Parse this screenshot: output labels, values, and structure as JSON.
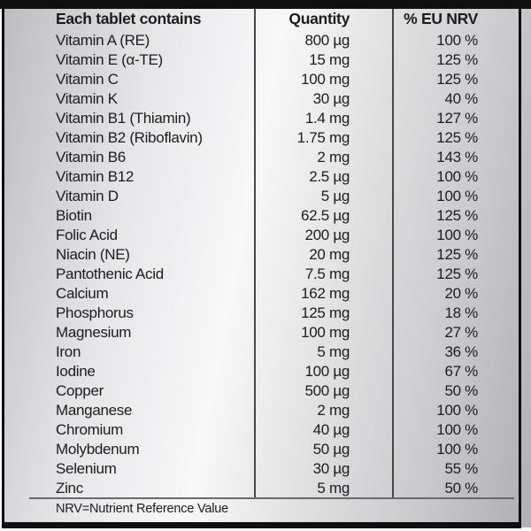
{
  "table": {
    "header": {
      "name": "Each tablet contains",
      "quantity": "Quantity",
      "nrv": "% EU NRV"
    },
    "rows": [
      {
        "name": "Vitamin A (RE)",
        "quantity": "800 µg",
        "nrv": "100 %"
      },
      {
        "name": "Vitamin E (α-TE)",
        "quantity": "15 mg",
        "nrv": "125 %"
      },
      {
        "name": "Vitamin C",
        "quantity": "100 mg",
        "nrv": "125 %"
      },
      {
        "name": "Vitamin K",
        "quantity": "30 µg",
        "nrv": "40 %"
      },
      {
        "name": "Vitamin B1 (Thiamin)",
        "quantity": "1.4 mg",
        "nrv": "127 %"
      },
      {
        "name": "Vitamin B2 (Riboflavin)",
        "quantity": "1.75 mg",
        "nrv": "125 %"
      },
      {
        "name": "Vitamin B6",
        "quantity": "2 mg",
        "nrv": "143 %"
      },
      {
        "name": "Vitamin B12",
        "quantity": "2.5 µg",
        "nrv": "100 %"
      },
      {
        "name": "Vitamin D",
        "quantity": "5 µg",
        "nrv": "100 %"
      },
      {
        "name": "Biotin",
        "quantity": "62.5 µg",
        "nrv": "125 %"
      },
      {
        "name": "Folic Acid",
        "quantity": "200 µg",
        "nrv": "100 %"
      },
      {
        "name": "Niacin (NE)",
        "quantity": "20 mg",
        "nrv": "125 %"
      },
      {
        "name": "Pantothenic Acid",
        "quantity": "7.5 mg",
        "nrv": "125 %"
      },
      {
        "name": "Calcium",
        "quantity": "162 mg",
        "nrv": "20 %"
      },
      {
        "name": "Phosphorus",
        "quantity": "125 mg",
        "nrv": "18 %"
      },
      {
        "name": "Magnesium",
        "quantity": "100 mg",
        "nrv": "27 %"
      },
      {
        "name": "Iron",
        "quantity": "5 mg",
        "nrv": "36 %"
      },
      {
        "name": "Iodine",
        "quantity": "100 µg",
        "nrv": "67 %"
      },
      {
        "name": "Copper",
        "quantity": "500 µg",
        "nrv": "50 %"
      },
      {
        "name": "Manganese",
        "quantity": "2 mg",
        "nrv": "100 %"
      },
      {
        "name": "Chromium",
        "quantity": "40 µg",
        "nrv": "100 %"
      },
      {
        "name": "Molybdenum",
        "quantity": "50 µg",
        "nrv": "100 %"
      },
      {
        "name": "Selenium",
        "quantity": "30 µg",
        "nrv": "55 %"
      },
      {
        "name": "Zinc",
        "quantity": "5 mg",
        "nrv": "50 %"
      }
    ],
    "footnote": "NRV=Nutrient Reference Value"
  },
  "colors": {
    "frame": "#0f0f10",
    "text": "#1c1c1e",
    "column_separator": "#48484a",
    "footnote_rule": "#6a6a6c",
    "metal_light": "#f8f8f9",
    "metal_dark": "#b1b1b6"
  }
}
